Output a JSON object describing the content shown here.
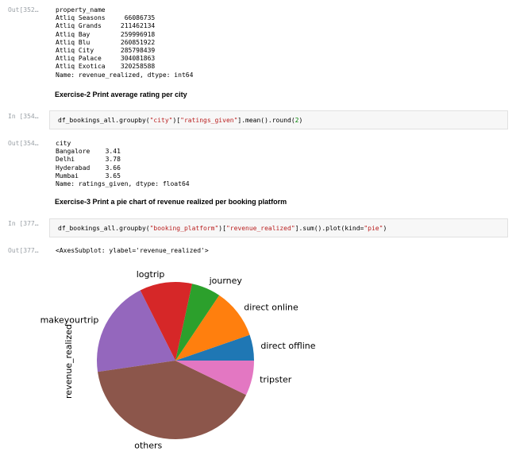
{
  "cells": [
    {
      "prompt": "Out[352…",
      "lines": [
        "property_name",
        "Atliq Seasons     66086735",
        "Atliq Grands     211462134",
        "Atliq Bay        259996918",
        "Atliq Blu        260851922",
        "Atliq City       285798439",
        "Atliq Palace     304081863",
        "Atliq Exotica    320258588",
        "Name: revenue_realized, dtype: int64"
      ]
    },
    {
      "heading": "Exercise-2 Print average rating per city"
    },
    {
      "prompt": "In [354…",
      "code": {
        "pre1": "df_bookings_all.groupby(",
        "str1": "\"city\"",
        "mid1": ")[",
        "str2": "\"ratings_given\"",
        "mid2": "].mean().round(",
        "num1": "2",
        "end": ")"
      }
    },
    {
      "prompt": "Out[354…",
      "lines": [
        "city",
        "Bangalore    3.41",
        "Delhi        3.78",
        "Hyderabad    3.66",
        "Mumbai       3.65",
        "Name: ratings_given, dtype: float64"
      ]
    },
    {
      "heading": "Exercise-3 Print a pie chart of revenue realized per booking platform"
    },
    {
      "prompt": "In [377…",
      "code": {
        "pre1": "df_bookings_all.groupby(",
        "str1": "\"booking_platform\"",
        "mid1": ")[",
        "str2": "\"revenue_realized\"",
        "mid2": "].sum().plot(kind=",
        "num1": "\"pie\"",
        "end": ")"
      }
    },
    {
      "prompt": "Out[377…",
      "text": "<AxesSubplot: ylabel='revenue_realized'>"
    }
  ],
  "chart_data": {
    "type": "pie",
    "ylabel": "revenue_realized",
    "start_angle_deg": 0,
    "direction": "counterclockwise",
    "slices": [
      {
        "label": "direct offline",
        "value": 5.3,
        "color": "#1f77b4"
      },
      {
        "label": "direct online",
        "value": 10.3,
        "color": "#ff7f0e"
      },
      {
        "label": "journey",
        "value": 6.0,
        "color": "#2ca02c"
      },
      {
        "label": "logtrip",
        "value": 10.8,
        "color": "#d62728"
      },
      {
        "label": "makeyourtrip",
        "value": 19.9,
        "color": "#9467bd"
      },
      {
        "label": "others",
        "value": 40.5,
        "color": "#8c564b"
      },
      {
        "label": "tripster",
        "value": 7.2,
        "color": "#e377c2"
      }
    ]
  }
}
